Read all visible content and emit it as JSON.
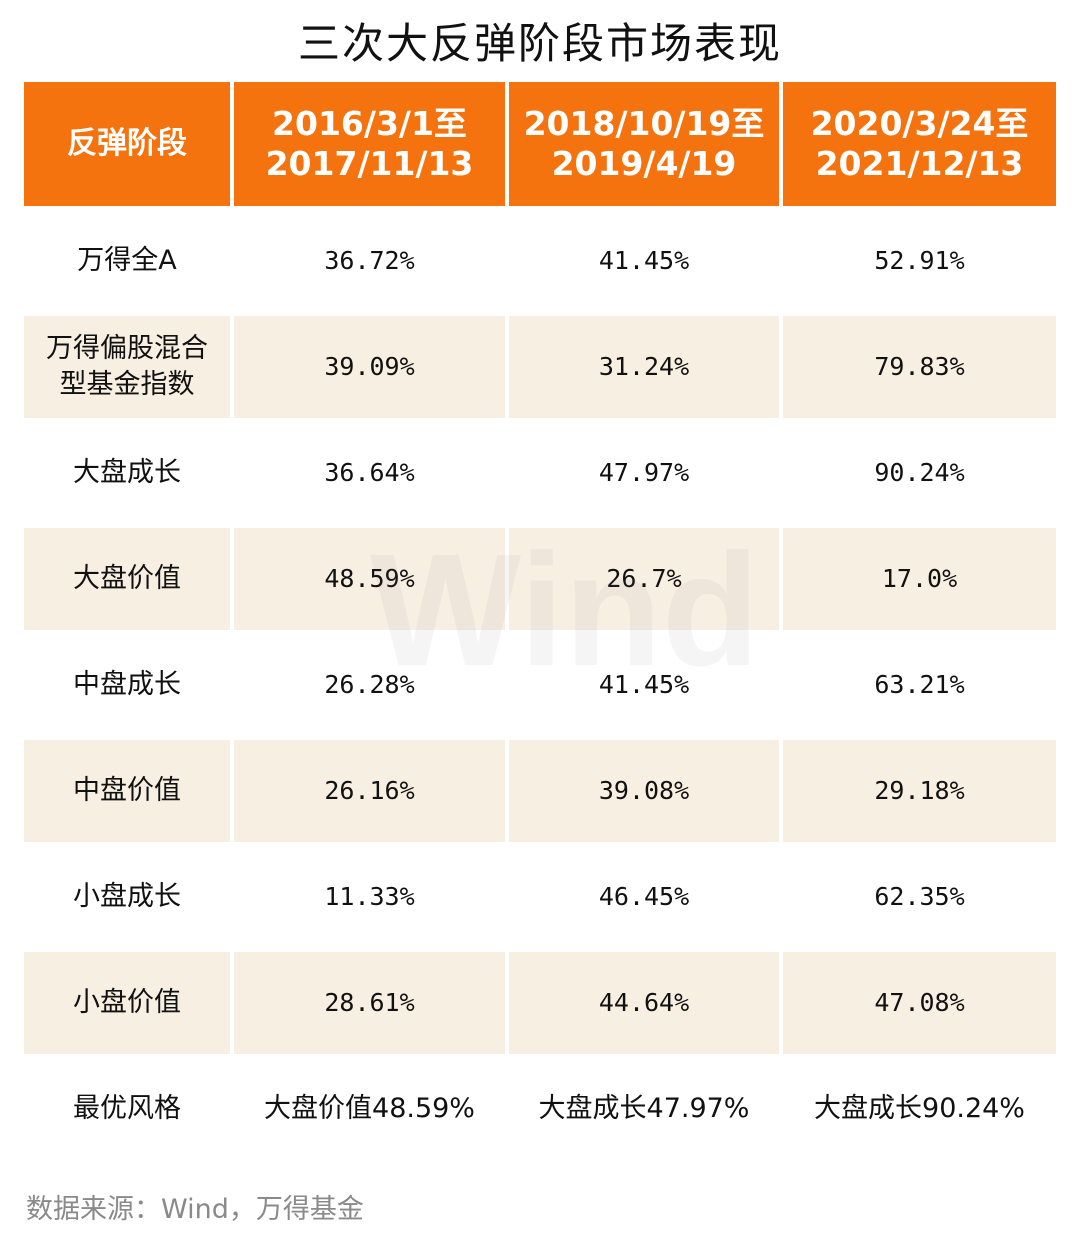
{
  "title": "三次大反弹阶段市场表现",
  "watermark": "Wind",
  "header": {
    "stage_label": "反弹阶段",
    "periods": [
      {
        "line1": "2016/3/1至",
        "line2": "2017/11/13"
      },
      {
        "line1": "2018/10/19至",
        "line2": "2019/4/19"
      },
      {
        "line1": "2020/3/24至",
        "line2": "2021/12/13"
      }
    ]
  },
  "rows": [
    {
      "label": "万得全A",
      "label_line2": "",
      "values": [
        "36.72%",
        "41.45%",
        "52.91%"
      ]
    },
    {
      "label": "万得偏股混合",
      "label_line2": "型基金指数",
      "values": [
        "39.09%",
        "31.24%",
        "79.83%"
      ]
    },
    {
      "label": "大盘成长",
      "label_line2": "",
      "values": [
        "36.64%",
        "47.97%",
        "90.24%"
      ]
    },
    {
      "label": "大盘价值",
      "label_line2": "",
      "values": [
        "48.59%",
        "26.7%",
        "17.0%"
      ]
    },
    {
      "label": "中盘成长",
      "label_line2": "",
      "values": [
        "26.28%",
        "41.45%",
        "63.21%"
      ]
    },
    {
      "label": "中盘价值",
      "label_line2": "",
      "values": [
        "26.16%",
        "39.08%",
        "29.18%"
      ]
    },
    {
      "label": "小盘成长",
      "label_line2": "",
      "values": [
        "11.33%",
        "46.45%",
        "62.35%"
      ]
    },
    {
      "label": "小盘价值",
      "label_line2": "",
      "values": [
        "28.61%",
        "44.64%",
        "47.08%"
      ]
    }
  ],
  "best_style": {
    "label": "最优风格",
    "values": [
      "大盘价值48.59%",
      "大盘成长47.97%",
      "大盘成长90.24%"
    ]
  },
  "source": "数据来源：Wind，万得基金",
  "colors": {
    "header_bg": "#f5730f",
    "shaded_row_bg": "#f8efe3",
    "source_text": "#8a8a8a"
  }
}
